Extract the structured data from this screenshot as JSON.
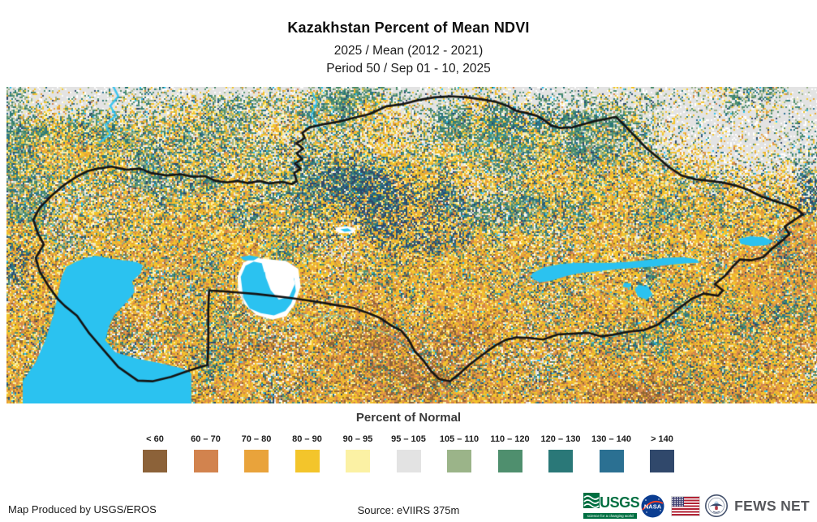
{
  "header": {
    "title": "Kazakhstan Percent of Mean NDVI",
    "subtitle1": "2025 / Mean (2012 - 2021)",
    "subtitle2": "Period 50 / Sep 01 - 10, 2025"
  },
  "legend": {
    "title": "Percent of Normal",
    "classes": [
      {
        "label": "< 60",
        "color": "#8C6239"
      },
      {
        "label": "60 – 70",
        "color": "#D2834E"
      },
      {
        "label": "70 – 80",
        "color": "#E9A33B"
      },
      {
        "label": "80 – 90",
        "color": "#F3C52B"
      },
      {
        "label": "90 – 95",
        "color": "#FBF1A4"
      },
      {
        "label": "95 – 105",
        "color": "#E3E3E3"
      },
      {
        "label": "105 – 110",
        "color": "#9BB489"
      },
      {
        "label": "110 – 120",
        "color": "#4F8F6E"
      },
      {
        "label": "120 – 130",
        "color": "#2A7878"
      },
      {
        "label": "130 – 140",
        "color": "#2B7092"
      },
      {
        "label": "> 140",
        "color": "#30486B"
      }
    ]
  },
  "map": {
    "water_color": "#2BC2F0",
    "dried_lakebed_color": "#FFFFFF",
    "country_border_color": "#141414",
    "admin_boundary_color": "#6B6B6B",
    "no_data_colors": {
      "white": "#FFFFFF",
      "light_gray": "#E3E3E3",
      "dark_olive": "#97702C"
    }
  },
  "footer": {
    "produced_by": "Map Produced by USGS/EROS",
    "source": "Source: eVIIRS 375m",
    "logos": {
      "usgs_name": "USGS",
      "usgs_tagline": "science for a changing world",
      "nasa_name": "NASA",
      "fewsnet_name": "FEWS NET"
    }
  }
}
